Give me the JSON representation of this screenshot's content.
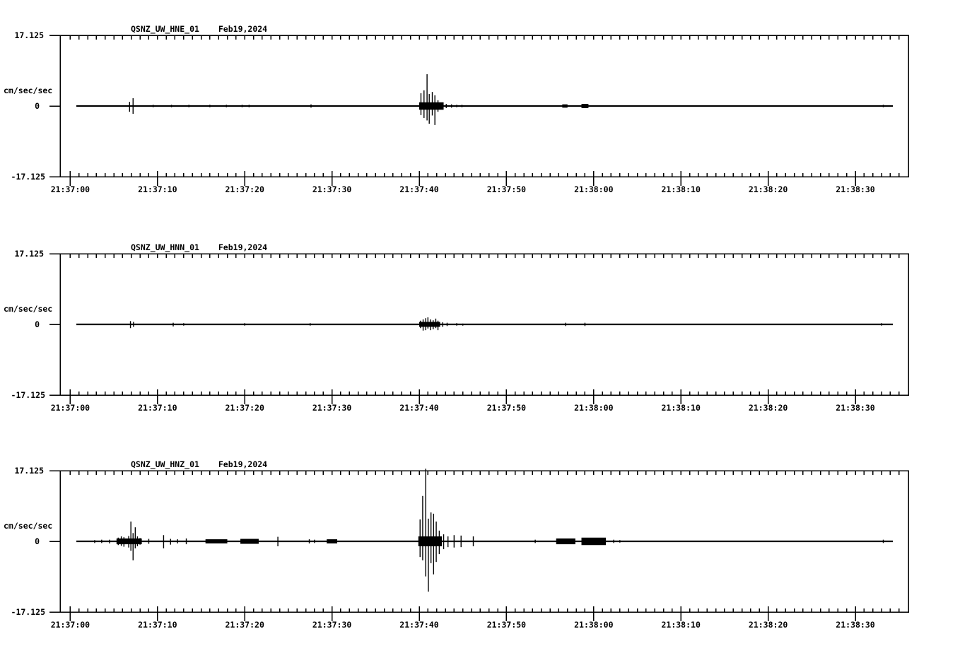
{
  "page": {
    "background": "#ffffff",
    "ink": "#000000"
  },
  "chart_data": [
    {
      "type": "line",
      "title": "QSNZ_UW_HNE_01",
      "date": "Feb19,2024",
      "ylabel": "cm/sec/sec",
      "y_top_label": "17.125",
      "y_zero_label": "0",
      "y_bottom_label": "-17.125",
      "ylim": [
        -17.125,
        17.125
      ],
      "x_tick_labels": [
        "21:37:00",
        "21:37:10",
        "21:37:20",
        "21:37:30",
        "21:37:40",
        "21:37:50",
        "21:38:00",
        "21:38:10",
        "21:38:20",
        "21:38:30"
      ],
      "x_tick_interval_sec": 10,
      "x_minor_tick_sec": 1,
      "x_range_sec": [
        0,
        95
      ],
      "spikes": [
        [
          6.8,
          1.0,
          -1.4
        ],
        [
          7.2,
          1.9,
          -1.9
        ],
        [
          9.5,
          0.3,
          -0.3
        ],
        [
          11.6,
          0.3,
          -0.3
        ],
        [
          13.6,
          0.3,
          -0.3
        ],
        [
          16.0,
          0.3,
          -0.3
        ],
        [
          17.9,
          0.3,
          -0.3
        ],
        [
          19.7,
          0.3,
          -0.3
        ],
        [
          20.5,
          0.3,
          -0.3
        ],
        [
          27.6,
          0.4,
          -0.4
        ],
        [
          40.2,
          3.1,
          -2.2
        ],
        [
          40.55,
          3.8,
          -2.9
        ],
        [
          40.9,
          7.7,
          -3.5
        ],
        [
          41.15,
          2.9,
          -4.3
        ],
        [
          41.5,
          3.4,
          -2.3
        ],
        [
          41.8,
          2.6,
          -4.6
        ],
        [
          42.15,
          1.4,
          -1.4
        ],
        [
          42.6,
          0.8,
          -0.8
        ],
        [
          43.1,
          0.5,
          -0.5
        ],
        [
          43.7,
          0.4,
          -0.4
        ],
        [
          44.3,
          0.3,
          -0.3
        ],
        [
          44.9,
          0.3,
          -0.3
        ],
        [
          93.2,
          0.3,
          -0.3
        ]
      ],
      "noise_bands": [
        [
          40.0,
          42.8,
          0.9
        ],
        [
          56.4,
          57.0,
          0.4
        ],
        [
          58.6,
          59.4,
          0.5
        ]
      ]
    },
    {
      "type": "line",
      "title": "QSNZ_UW_HNN_01",
      "date": "Feb19,2024",
      "ylabel": "cm/sec/sec",
      "y_top_label": "17.125",
      "y_zero_label": "0",
      "y_bottom_label": "-17.125",
      "ylim": [
        -17.125,
        17.125
      ],
      "x_tick_labels": [
        "21:37:00",
        "21:37:10",
        "21:37:20",
        "21:37:30",
        "21:37:40",
        "21:37:50",
        "21:38:00",
        "21:38:10",
        "21:38:20",
        "21:38:30"
      ],
      "x_tick_interval_sec": 10,
      "x_minor_tick_sec": 1,
      "x_range_sec": [
        0,
        95
      ],
      "spikes": [
        [
          6.9,
          0.8,
          -0.9
        ],
        [
          7.25,
          0.6,
          -0.6
        ],
        [
          11.8,
          0.4,
          -0.5
        ],
        [
          13.0,
          0.3,
          -0.3
        ],
        [
          20.0,
          0.3,
          -0.3
        ],
        [
          27.5,
          0.3,
          -0.3
        ],
        [
          40.15,
          0.9,
          -0.9
        ],
        [
          40.45,
          1.2,
          -1.5
        ],
        [
          40.75,
          1.5,
          -1.4
        ],
        [
          41.0,
          1.7,
          -1.0
        ],
        [
          41.3,
          1.2,
          -1.4
        ],
        [
          41.6,
          1.0,
          -1.2
        ],
        [
          41.9,
          1.4,
          -0.9
        ],
        [
          42.15,
          0.9,
          -1.4
        ],
        [
          42.7,
          0.5,
          -0.6
        ],
        [
          43.2,
          0.4,
          -0.4
        ],
        [
          44.3,
          0.3,
          -0.3
        ],
        [
          45.0,
          0.2,
          -0.3
        ],
        [
          56.8,
          0.4,
          -0.4
        ],
        [
          59.0,
          0.4,
          -0.4
        ],
        [
          93.0,
          0.3,
          -0.3
        ]
      ],
      "noise_bands": [
        [
          40.0,
          42.4,
          0.6
        ]
      ]
    },
    {
      "type": "line",
      "title": "QSNZ_UW_HNZ_01",
      "date": "Feb19,2024",
      "ylabel": "cm/sec/sec",
      "y_top_label": "17.125",
      "y_zero_label": "0",
      "y_bottom_label": "-17.125",
      "ylim": [
        -17.125,
        17.125
      ],
      "x_tick_labels": [
        "21:37:00",
        "21:37:10",
        "21:37:20",
        "21:37:30",
        "21:37:40",
        "21:37:50",
        "21:38:00",
        "21:38:10",
        "21:38:20",
        "21:38:30"
      ],
      "x_tick_interval_sec": 10,
      "x_minor_tick_sec": 1,
      "x_range_sec": [
        0,
        95
      ],
      "spikes": [
        [
          2.8,
          0.3,
          -0.4
        ],
        [
          3.6,
          0.4,
          -0.4
        ],
        [
          4.5,
          0.4,
          -0.5
        ],
        [
          5.5,
          0.9,
          -0.9
        ],
        [
          5.85,
          1.2,
          -1.1
        ],
        [
          6.15,
          1.0,
          -1.3
        ],
        [
          6.7,
          1.3,
          -1.5
        ],
        [
          6.95,
          4.8,
          -2.3
        ],
        [
          7.2,
          2.0,
          -4.6
        ],
        [
          7.45,
          3.4,
          -1.7
        ],
        [
          7.7,
          1.2,
          -1.2
        ],
        [
          8.0,
          0.8,
          -0.8
        ],
        [
          9.0,
          0.6,
          -0.6
        ],
        [
          10.7,
          1.5,
          -1.7
        ],
        [
          11.5,
          0.6,
          -0.8
        ],
        [
          12.3,
          0.5,
          -0.5
        ],
        [
          13.3,
          0.7,
          -0.7
        ],
        [
          23.8,
          1.1,
          -1.2
        ],
        [
          27.4,
          0.5,
          -0.5
        ],
        [
          28.0,
          0.4,
          -0.4
        ],
        [
          40.1,
          5.3,
          -3.8
        ],
        [
          40.4,
          11.0,
          -4.6
        ],
        [
          40.75,
          17.6,
          -8.5
        ],
        [
          41.05,
          5.5,
          -12.2
        ],
        [
          41.35,
          7.0,
          -5.3
        ],
        [
          41.65,
          6.7,
          -8.0
        ],
        [
          41.95,
          4.8,
          -5.0
        ],
        [
          42.3,
          2.6,
          -3.1
        ],
        [
          42.8,
          1.7,
          -1.9
        ],
        [
          43.3,
          1.2,
          -1.4
        ],
        [
          44.0,
          1.5,
          -1.5
        ],
        [
          44.8,
          1.4,
          -1.4
        ],
        [
          46.2,
          1.2,
          -1.2
        ],
        [
          53.3,
          0.4,
          -0.4
        ],
        [
          62.3,
          0.4,
          -0.4
        ],
        [
          63.0,
          0.3,
          -0.3
        ],
        [
          93.2,
          0.4,
          -0.4
        ]
      ],
      "noise_bands": [
        [
          5.3,
          8.2,
          0.7
        ],
        [
          15.5,
          18.0,
          0.5
        ],
        [
          19.5,
          21.6,
          0.6
        ],
        [
          29.4,
          30.6,
          0.5
        ],
        [
          39.9,
          42.6,
          1.2
        ],
        [
          55.7,
          57.9,
          0.7
        ],
        [
          58.6,
          61.4,
          0.9
        ]
      ]
    }
  ]
}
